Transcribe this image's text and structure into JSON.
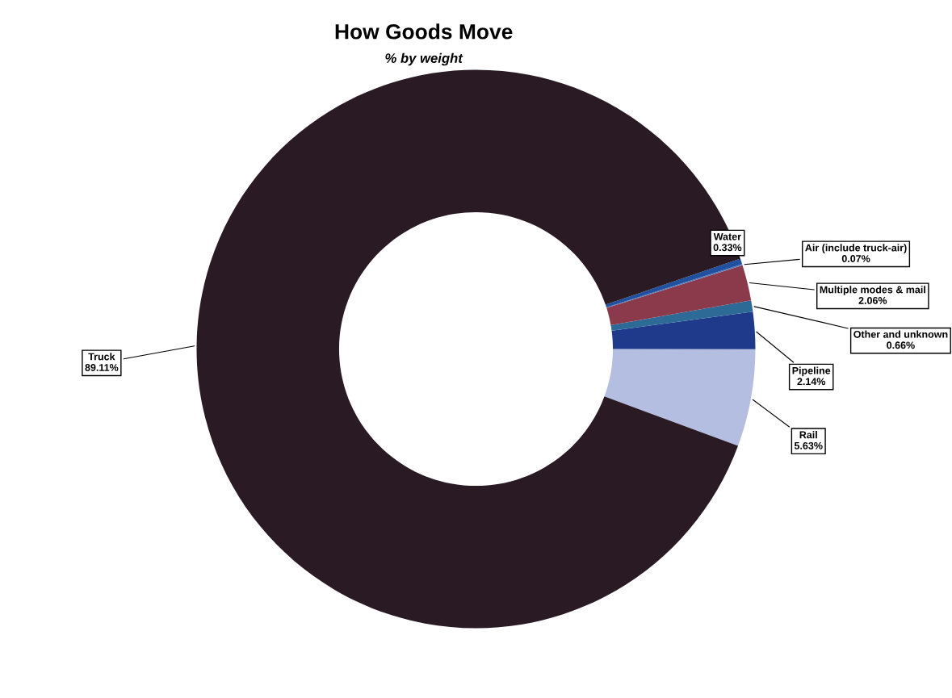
{
  "chart_data": {
    "type": "donut",
    "title": "How Goods Move",
    "subtitle": "% by weight",
    "categories": [
      "Rail",
      "Pipeline",
      "Other and unknown",
      "Multiple modes & mail",
      "Air (include truck-air)",
      "Water",
      "Truck"
    ],
    "values": [
      5.63,
      2.14,
      0.66,
      2.06,
      0.07,
      0.33,
      89.11
    ],
    "colors": [
      "#b4bee0",
      "#1f3a8a",
      "#2e6a96",
      "#8a3a4a",
      "#5a7ab8",
      "#2050a0",
      "#2a1a24"
    ],
    "value_labels": [
      "5.63%",
      "2.14%",
      "0.66%",
      "2.06%",
      "0.07%",
      "0.33%",
      "89.11%"
    ],
    "legend": false
  }
}
